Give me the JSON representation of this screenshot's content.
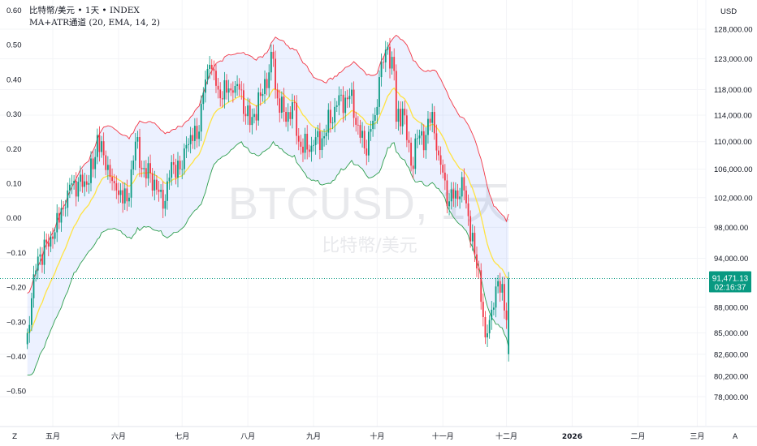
{
  "legend": {
    "symbol_line": "比特幣/美元 • 1天 • INDEX",
    "indicator_line": "MA+ATR通道 (20, EMA, 14, 2)"
  },
  "watermark": {
    "ticker": "BTCUSD, 1天",
    "name": "比特幣/美元"
  },
  "axis": {
    "currency": "USD",
    "z_label": "Z",
    "a_label": "A",
    "right_ticks": [
      "128,000.00",
      "123,000.00",
      "118,000.00",
      "114,000.00",
      "110,000.00",
      "106,000.00",
      "102,000.00",
      "98,000.00",
      "94,000.00",
      "88,000.00",
      "85,000.00",
      "82,600.00",
      "80,200.00",
      "78,000.00"
    ],
    "left_ticks": [
      "0.60",
      "0.50",
      "0.40",
      "0.30",
      "0.20",
      "0.10",
      "0.00",
      "−0.10",
      "−0.20",
      "−0.30",
      "−0.40",
      "−0.50"
    ],
    "x_ticks": [
      {
        "label": "五月",
        "date": "2025-05-01"
      },
      {
        "label": "六月",
        "date": "2025-06-01"
      },
      {
        "label": "七月",
        "date": "2025-07-01"
      },
      {
        "label": "八月",
        "date": "2025-08-01"
      },
      {
        "label": "九月",
        "date": "2025-09-01"
      },
      {
        "label": "十月",
        "date": "2025-10-01"
      },
      {
        "label": "十一月",
        "date": "2025-11-01"
      },
      {
        "label": "十二月",
        "date": "2025-12-01"
      },
      {
        "label": "2026",
        "date": "2026-01-01"
      },
      {
        "label": "二月",
        "date": "2026-02-01"
      },
      {
        "label": "三月",
        "date": "2026-03-01"
      }
    ]
  },
  "last_price": {
    "value": "91,471.13",
    "countdown": "02:16:37",
    "price": 91471.13
  },
  "colors": {
    "up": "#089981",
    "down": "#F23645",
    "ma": "#FFE342",
    "upper": "#F23645",
    "lower": "#2E9E4F",
    "fill": "rgba(41,98,255,0.09)",
    "badge": "#089981"
  },
  "chart_data": {
    "type": "candlestick",
    "scale": "log",
    "ylim": [
      77000,
      131000
    ],
    "indicator": "MA+ATR通道 (20, EMA, 14, 2)",
    "closes": [
      [
        "2025-04-19",
        85000
      ],
      [
        "2025-04-22",
        92000
      ],
      [
        "2025-04-25",
        94500
      ],
      [
        "2025-05-01",
        96500
      ],
      [
        "2025-05-08",
        103000
      ],
      [
        "2025-05-10",
        104000
      ],
      [
        "2025-05-15",
        103500
      ],
      [
        "2025-05-20",
        106000
      ],
      [
        "2025-05-22",
        111000
      ],
      [
        "2025-05-25",
        108000
      ],
      [
        "2025-05-30",
        104000
      ],
      [
        "2025-06-05",
        101500
      ],
      [
        "2025-06-09",
        110000
      ],
      [
        "2025-06-12",
        106000
      ],
      [
        "2025-06-18",
        104500
      ],
      [
        "2025-06-22",
        100500
      ],
      [
        "2025-06-26",
        107000
      ],
      [
        "2025-07-01",
        106000
      ],
      [
        "2025-07-03",
        109500
      ],
      [
        "2025-07-09",
        111500
      ],
      [
        "2025-07-11",
        117500
      ],
      [
        "2025-07-14",
        122000
      ],
      [
        "2025-07-18",
        118000
      ],
      [
        "2025-07-25",
        117500
      ],
      [
        "2025-07-28",
        118000
      ],
      [
        "2025-08-02",
        112500
      ],
      [
        "2025-08-07",
        117000
      ],
      [
        "2025-08-13",
        123000
      ],
      [
        "2025-08-14",
        118000
      ],
      [
        "2025-08-19",
        113000
      ],
      [
        "2025-08-22",
        116000
      ],
      [
        "2025-08-25",
        110000
      ],
      [
        "2025-08-30",
        108500
      ],
      [
        "2025-09-01",
        109500
      ],
      [
        "2025-09-05",
        110500
      ],
      [
        "2025-09-12",
        115500
      ],
      [
        "2025-09-18",
        117000
      ],
      [
        "2025-09-22",
        112500
      ],
      [
        "2025-09-25",
        109000
      ],
      [
        "2025-09-30",
        114000
      ],
      [
        "2025-10-02",
        120000
      ],
      [
        "2025-10-05",
        124500
      ],
      [
        "2025-10-06",
        125000
      ],
      [
        "2025-10-09",
        121000
      ],
      [
        "2025-10-10",
        113000
      ],
      [
        "2025-10-13",
        115000
      ],
      [
        "2025-10-17",
        106500
      ],
      [
        "2025-10-20",
        110500
      ],
      [
        "2025-10-24",
        111000
      ],
      [
        "2025-10-27",
        114500
      ],
      [
        "2025-10-30",
        108000
      ],
      [
        "2025-11-04",
        101500
      ],
      [
        "2025-11-07",
        103000
      ],
      [
        "2025-11-11",
        103000
      ],
      [
        "2025-11-13",
        99500
      ],
      [
        "2025-11-16",
        94500
      ],
      [
        "2025-11-18",
        92500
      ],
      [
        "2025-11-21",
        84500
      ],
      [
        "2025-11-23",
        86500
      ],
      [
        "2025-11-26",
        90500
      ],
      [
        "2025-11-29",
        90800
      ],
      [
        "2025-12-01",
        86500
      ],
      [
        "2025-12-02",
        91471.13
      ]
    ]
  }
}
